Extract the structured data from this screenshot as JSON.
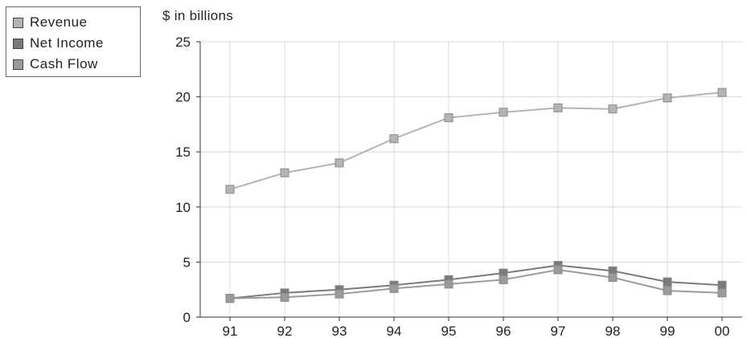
{
  "chart_data": {
    "type": "line",
    "title": "",
    "ylabel": "$ in billions",
    "xlabel": "",
    "categories": [
      "91",
      "92",
      "93",
      "94",
      "95",
      "96",
      "97",
      "98",
      "99",
      "00"
    ],
    "ylim": [
      0,
      25
    ],
    "yticks": [
      "0",
      "5",
      "10",
      "15",
      "20",
      "25"
    ],
    "grid": true,
    "legend_position": "top-left",
    "series": [
      {
        "name": "Revenue",
        "values": [
          11.6,
          13.1,
          14.0,
          16.2,
          18.1,
          18.6,
          19.0,
          18.9,
          19.9,
          20.4
        ],
        "color": "#b4b4b4"
      },
      {
        "name": "Net Income",
        "values": [
          1.7,
          2.2,
          2.5,
          2.9,
          3.4,
          4.0,
          4.7,
          4.2,
          3.2,
          2.9
        ],
        "color": "#7a7a7a"
      },
      {
        "name": "Cash Flow",
        "values": [
          1.7,
          1.8,
          2.1,
          2.6,
          3.0,
          3.4,
          4.3,
          3.6,
          2.4,
          2.2
        ],
        "color": "#9a9a9a"
      }
    ]
  }
}
